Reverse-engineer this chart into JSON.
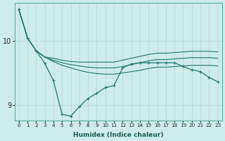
{
  "xlabel": "Humidex (Indice chaleur)",
  "bg_color": "#ceecea",
  "line_color": "#1a7a6e",
  "grid_color": "#b8dbd8",
  "x_ticks": [
    0,
    1,
    2,
    3,
    4,
    5,
    6,
    7,
    8,
    9,
    10,
    11,
    12,
    13,
    14,
    15,
    16,
    17,
    18,
    19,
    20,
    21,
    22,
    23
  ],
  "ylim": [
    8.75,
    10.6
  ],
  "yticks": [
    9,
    10
  ],
  "series": {
    "line1": [
      10.5,
      10.05,
      9.85,
      9.75,
      9.68,
      9.62,
      9.58,
      9.54,
      9.51,
      9.49,
      9.48,
      9.48,
      9.5,
      9.52,
      9.54,
      9.57,
      9.59,
      9.59,
      9.6,
      9.61,
      9.62,
      9.62,
      9.62,
      9.61
    ],
    "line2": [
      10.5,
      10.05,
      9.85,
      9.75,
      9.7,
      9.66,
      9.63,
      9.61,
      9.59,
      9.58,
      9.58,
      9.58,
      9.6,
      9.63,
      9.66,
      9.69,
      9.71,
      9.71,
      9.72,
      9.73,
      9.74,
      9.74,
      9.74,
      9.73
    ],
    "line3": [
      10.5,
      10.05,
      9.85,
      9.75,
      9.73,
      9.7,
      9.68,
      9.67,
      9.67,
      9.67,
      9.67,
      9.67,
      9.7,
      9.73,
      9.76,
      9.79,
      9.81,
      9.81,
      9.82,
      9.83,
      9.84,
      9.84,
      9.84,
      9.83
    ],
    "line4": [
      10.5,
      10.05,
      9.85,
      9.65,
      9.38,
      8.85,
      8.82,
      8.97,
      9.1,
      9.18,
      9.27,
      9.3,
      9.58,
      9.64,
      9.66,
      9.66,
      9.66,
      9.66,
      9.66,
      9.6,
      9.55,
      9.52,
      9.43,
      9.36
    ]
  }
}
